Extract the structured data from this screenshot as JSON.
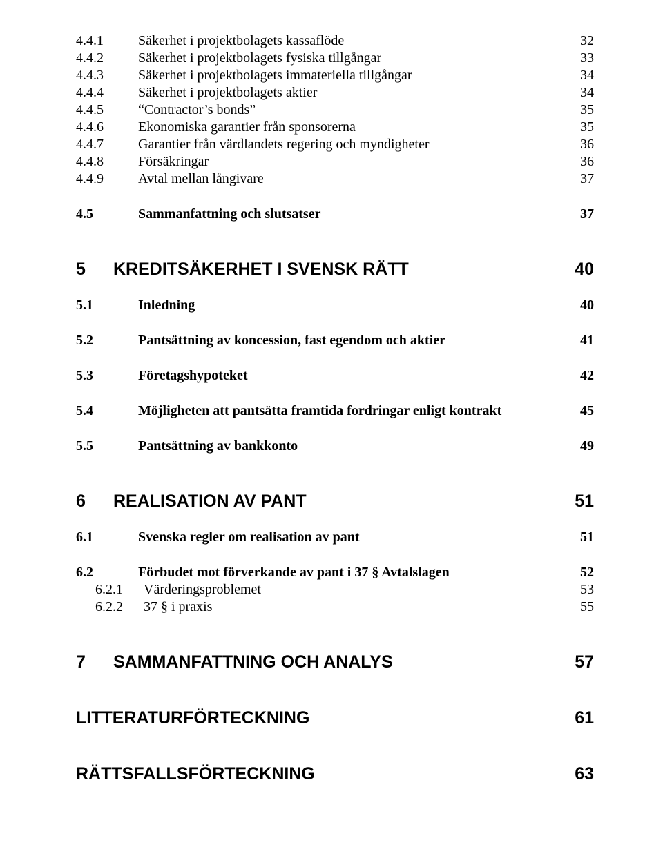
{
  "entries": [
    {
      "cls": "row l3",
      "num": "4.4.1",
      "title": "Säkerhet i projektbolagets kassaflöde",
      "page": "32"
    },
    {
      "cls": "row l3",
      "num": "4.4.2",
      "title": "Säkerhet i projektbolagets fysiska tillgångar",
      "page": "33"
    },
    {
      "cls": "row l3",
      "num": "4.4.3",
      "title": "Säkerhet i projektbolagets immateriella tillgångar",
      "page": "34"
    },
    {
      "cls": "row l3",
      "num": "4.4.4",
      "title": "Säkerhet i projektbolagets aktier",
      "page": "34"
    },
    {
      "cls": "row l3",
      "num": "4.4.5",
      "title": "“Contractor’s bonds”",
      "page": "35"
    },
    {
      "cls": "row l3",
      "num": "4.4.6",
      "title": "Ekonomiska garantier från sponsorerna",
      "page": "35"
    },
    {
      "cls": "row l3",
      "num": "4.4.7",
      "title": "Garantier från värdlandets regering och myndigheter",
      "page": "36"
    },
    {
      "cls": "row l3",
      "num": "4.4.8",
      "title": "Försäkringar",
      "page": "36"
    },
    {
      "cls": "row l3",
      "num": "4.4.9",
      "title": "Avtal mellan långivare",
      "page": "37"
    },
    {
      "cls": "gap-md"
    },
    {
      "cls": "row l2-serif",
      "num": "4.5",
      "title": "Sammanfattning och slutsatser",
      "page": "37"
    },
    {
      "cls": "gap-lg"
    },
    {
      "cls": "row l1",
      "num": "5",
      "title": "KREDITSÄKERHET I SVENSK RÄTT",
      "page": "40"
    },
    {
      "cls": "gap-md"
    },
    {
      "cls": "row l2-serif",
      "num": "5.1",
      "title": "Inledning",
      "page": "40"
    },
    {
      "cls": "gap-md"
    },
    {
      "cls": "row l2-serif",
      "num": "5.2",
      "title": "Pantsättning av koncession, fast egendom och aktier",
      "page": "41"
    },
    {
      "cls": "gap-md"
    },
    {
      "cls": "row l2-serif",
      "num": "5.3",
      "title": "Företagshypoteket",
      "page": "42"
    },
    {
      "cls": "gap-md"
    },
    {
      "cls": "row l2-serif",
      "num": "5.4",
      "title": "Möjligheten att pantsätta framtida fordringar enligt kontrakt",
      "page": "45"
    },
    {
      "cls": "gap-md"
    },
    {
      "cls": "row l2-serif",
      "num": "5.5",
      "title": "Pantsättning av bankkonto",
      "page": "49"
    },
    {
      "cls": "gap-lg"
    },
    {
      "cls": "row l1",
      "num": "6",
      "title": "REALISATION AV PANT",
      "page": "51"
    },
    {
      "cls": "gap-md"
    },
    {
      "cls": "row l2-serif",
      "num": "6.1",
      "title": "Svenska regler om realisation av pant",
      "page": "51"
    },
    {
      "cls": "gap-md"
    },
    {
      "cls": "row l2-serif",
      "num": "6.2",
      "title": "Förbudet mot förverkande av pant i 37 § Avtalslagen",
      "page": "52"
    },
    {
      "cls": "row l2-sub3",
      "num": "6.2.1",
      "title": "Värderingsproblemet",
      "page": "53"
    },
    {
      "cls": "row l2-sub3",
      "num": "6.2.2",
      "title": "37 § i praxis",
      "page": "55"
    },
    {
      "cls": "gap-lg"
    },
    {
      "cls": "row l1",
      "num": "7",
      "title": "SAMMANFATTNING OCH ANALYS",
      "page": "57"
    },
    {
      "cls": "gap-lg"
    },
    {
      "cls": "row l1-nonum",
      "title": "LITTERATURFÖRTECKNING",
      "page": "61"
    },
    {
      "cls": "gap-lg"
    },
    {
      "cls": "row l1-nonum",
      "title": "RÄTTSFALLSFÖRTECKNING",
      "page": "63"
    }
  ]
}
